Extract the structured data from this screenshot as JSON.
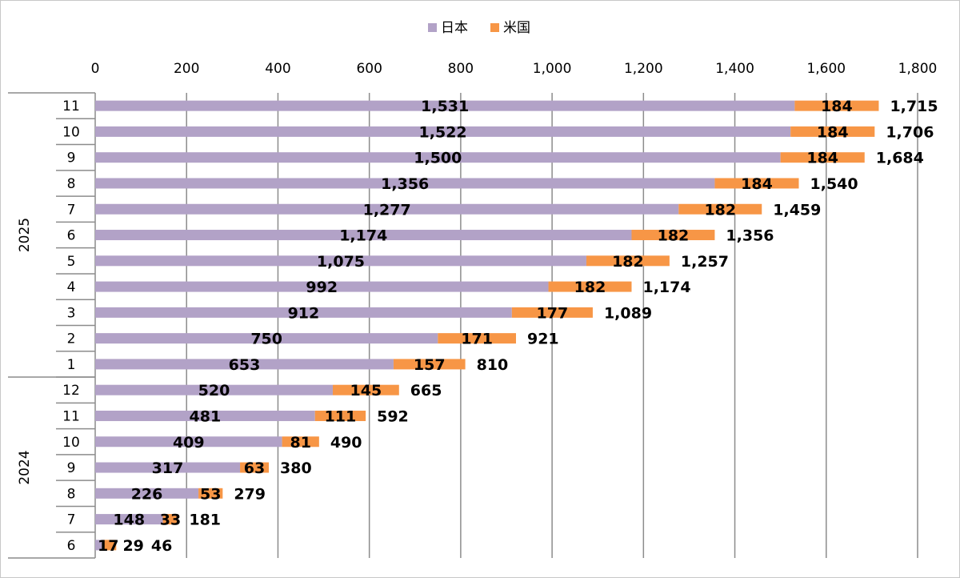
{
  "chart_data": {
    "type": "bar",
    "orientation": "horizontal",
    "stacked": true,
    "title": "",
    "xlabel": "",
    "ylabel": "",
    "xlim": [
      0,
      1800
    ],
    "x_ticks": [
      "0",
      "200",
      "400",
      "600",
      "800",
      "1,000",
      "1,200",
      "1,400",
      "1,600",
      "1,800"
    ],
    "x_tick_values": [
      0,
      200,
      400,
      600,
      800,
      1000,
      1200,
      1400,
      1600,
      1800
    ],
    "grid": true,
    "legend_position": "top",
    "groups": [
      {
        "label": "2025",
        "categories": [
          "11",
          "10",
          "9",
          "8",
          "7",
          "6",
          "5",
          "4",
          "3",
          "2",
          "1"
        ]
      },
      {
        "label": "2024",
        "categories": [
          "12",
          "11",
          "10",
          "9",
          "8",
          "7",
          "6"
        ]
      }
    ],
    "series": [
      {
        "name": "日本",
        "color": "#b2a2c7",
        "values": [
          1531,
          1522,
          1500,
          1356,
          1277,
          1174,
          1075,
          992,
          912,
          750,
          653,
          520,
          481,
          409,
          317,
          226,
          148,
          17
        ],
        "labels": [
          "1,531",
          "1,522",
          "1,500",
          "1,356",
          "1,277",
          "1,174",
          "1,075",
          "992",
          "912",
          "750",
          "653",
          "520",
          "481",
          "409",
          "317",
          "226",
          "148",
          "17"
        ]
      },
      {
        "name": "米国",
        "color": "#f79646",
        "values": [
          184,
          184,
          184,
          184,
          182,
          182,
          182,
          182,
          177,
          171,
          157,
          145,
          111,
          81,
          63,
          53,
          33,
          29
        ],
        "labels": [
          "184",
          "184",
          "184",
          "184",
          "182",
          "182",
          "182",
          "182",
          "177",
          "171",
          "157",
          "145",
          "111",
          "81",
          "63",
          "53",
          "33",
          "29"
        ]
      }
    ],
    "totals": [
      1715,
      1706,
      1684,
      1540,
      1459,
      1356,
      1257,
      1174,
      1089,
      921,
      810,
      665,
      592,
      490,
      380,
      279,
      181,
      46
    ],
    "total_labels": [
      "1,715",
      "1,706",
      "1,684",
      "1,540",
      "1,459",
      "1,356",
      "1,257",
      "1,174",
      "1,089",
      "921",
      "810",
      "665",
      "592",
      "490",
      "380",
      "279",
      "181",
      "46"
    ]
  }
}
